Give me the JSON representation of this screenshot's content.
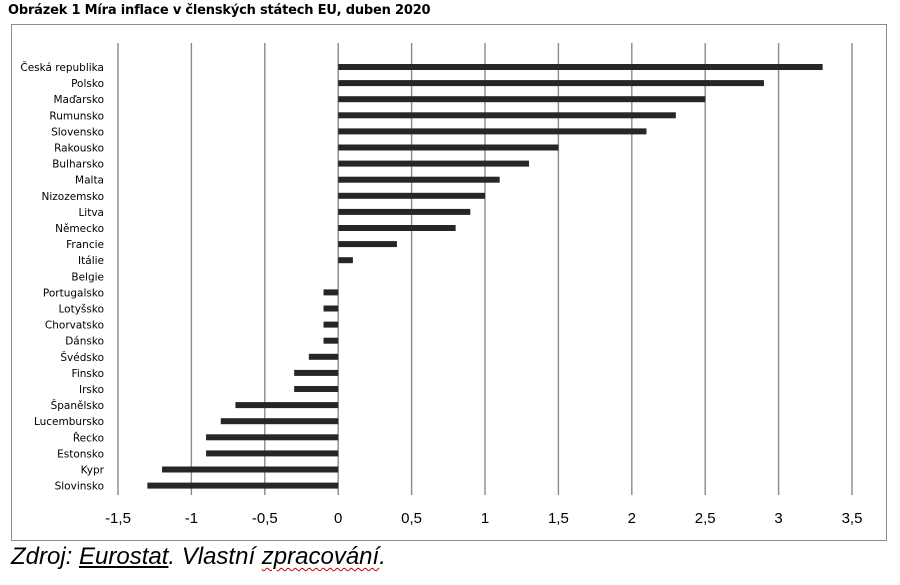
{
  "title": "Obrázek 1 Míra inflace v členských státech EU, duben 2020",
  "source": {
    "prefix": "Zdroj: ",
    "link": "Eurostat",
    "suffix": ". Vlastní ",
    "squiggle": "zpracování",
    "end": "."
  },
  "chart_data": {
    "type": "bar",
    "orientation": "horizontal",
    "categories": [
      "Česká republika",
      "Polsko",
      "Maďarsko",
      "Rumunsko",
      "Slovensko",
      "Rakousko",
      "Bulharsko",
      "Malta",
      "Nizozemsko",
      "Litva",
      "Německo",
      "Francie",
      "Itálie",
      "Belgie",
      "Portugalsko",
      "Lotyšsko",
      "Chorvatsko",
      "Dánsko",
      "Švédsko",
      "Finsko",
      "Irsko",
      "Španělsko",
      "Lucembursko",
      "Řecko",
      "Estonsko",
      "Kypr",
      "Slovinsko"
    ],
    "values": [
      3.3,
      2.9,
      2.5,
      2.3,
      2.1,
      1.5,
      1.3,
      1.1,
      1.0,
      0.9,
      0.8,
      0.4,
      0.1,
      0.0,
      -0.1,
      -0.1,
      -0.1,
      -0.1,
      -0.2,
      -0.3,
      -0.3,
      -0.7,
      -0.8,
      -0.9,
      -0.9,
      -1.2,
      -1.3
    ],
    "xlim": [
      -1.5,
      3.5
    ],
    "x_ticks": [
      "-1,5",
      "-1",
      "-0,5",
      "0",
      "0,5",
      "1",
      "1,5",
      "2",
      "2,5",
      "3",
      "3,5"
    ],
    "grid": "vertical",
    "bar_color": "#262626"
  }
}
